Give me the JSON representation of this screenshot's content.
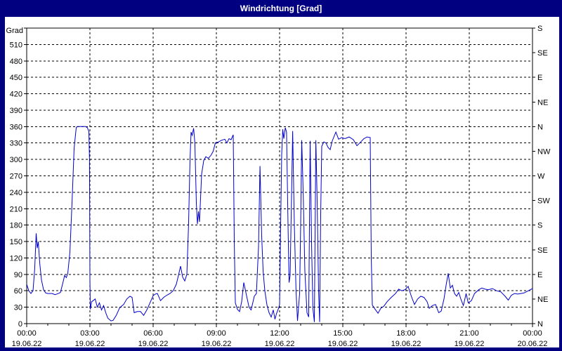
{
  "window": {
    "title": "Windrichtung [Grad]"
  },
  "colors": {
    "frame": "#000080",
    "title_text": "#FFFFFF",
    "background": "#FFFFFF",
    "axis": "#000000",
    "grid": "#000000",
    "line": "#0000CC"
  },
  "chart_data": {
    "type": "line",
    "title": "Windrichtung [Grad]",
    "ylabel": "Grad",
    "grid": "dashed",
    "legend": "none",
    "y_axis": {
      "label": "Grad",
      "min": 0,
      "max": 540,
      "tick_step": 30,
      "labeled_ticks": [
        0,
        30,
        60,
        90,
        120,
        150,
        180,
        210,
        240,
        270,
        300,
        330,
        360,
        390,
        420,
        450,
        480,
        510
      ]
    },
    "right_axis": {
      "tick_step_degrees": 45,
      "labels_bottom_to_top": [
        "N",
        "NE",
        "E",
        "SE",
        "S",
        "SW",
        "W",
        "NW",
        "N",
        "NE",
        "E",
        "SE",
        "S"
      ]
    },
    "x_axis": {
      "range_hours": [
        0,
        24
      ],
      "minor_tick_hours": 1,
      "major_tick_hours": 3,
      "ticks": [
        {
          "time": "00:00",
          "date": "19.06.22"
        },
        {
          "time": "03:00",
          "date": "19.06.22"
        },
        {
          "time": "06:00",
          "date": "19.06.22"
        },
        {
          "time": "09:00",
          "date": "19.06.22"
        },
        {
          "time": "12:00",
          "date": "19.06.22"
        },
        {
          "time": "15:00",
          "date": "19.06.22"
        },
        {
          "time": "18:00",
          "date": "19.06.22"
        },
        {
          "time": "21:00",
          "date": "19.06.22"
        },
        {
          "time": "00:00",
          "date": "20.06.22"
        }
      ]
    },
    "series": [
      {
        "name": "Windrichtung",
        "color": "#0000CC",
        "points": [
          [
            0,
            72
          ],
          [
            0.1,
            60
          ],
          [
            0.2,
            55
          ],
          [
            0.3,
            60
          ],
          [
            0.38,
            100
          ],
          [
            0.45,
            165
          ],
          [
            0.5,
            138
          ],
          [
            0.55,
            150
          ],
          [
            0.62,
            110
          ],
          [
            0.7,
            80
          ],
          [
            0.8,
            62
          ],
          [
            0.9,
            56
          ],
          [
            1.0,
            55
          ],
          [
            1.2,
            55
          ],
          [
            1.35,
            53
          ],
          [
            1.5,
            55
          ],
          [
            1.6,
            57
          ],
          [
            1.72,
            75
          ],
          [
            1.8,
            88
          ],
          [
            1.88,
            84
          ],
          [
            1.95,
            92
          ],
          [
            2.05,
            130
          ],
          [
            2.15,
            220
          ],
          [
            2.25,
            320
          ],
          [
            2.35,
            358
          ],
          [
            2.4,
            360
          ],
          [
            2.6,
            360
          ],
          [
            2.8,
            360
          ],
          [
            2.88,
            358
          ],
          [
            2.95,
            351
          ],
          [
            2.98,
            300
          ],
          [
            3.0,
            80
          ],
          [
            3.02,
            26
          ],
          [
            3.08,
            40
          ],
          [
            3.15,
            42
          ],
          [
            3.25,
            45
          ],
          [
            3.35,
            30
          ],
          [
            3.45,
            38
          ],
          [
            3.55,
            25
          ],
          [
            3.65,
            33
          ],
          [
            3.75,
            20
          ],
          [
            3.85,
            10
          ],
          [
            4.0,
            5
          ],
          [
            4.1,
            6
          ],
          [
            4.25,
            15
          ],
          [
            4.4,
            28
          ],
          [
            4.5,
            32
          ],
          [
            4.6,
            35
          ],
          [
            4.75,
            45
          ],
          [
            4.9,
            50
          ],
          [
            5.0,
            48
          ],
          [
            5.1,
            20
          ],
          [
            5.25,
            22
          ],
          [
            5.4,
            22
          ],
          [
            5.55,
            15
          ],
          [
            5.7,
            25
          ],
          [
            5.85,
            38
          ],
          [
            6.0,
            51
          ],
          [
            6.1,
            54
          ],
          [
            6.2,
            55
          ],
          [
            6.35,
            42
          ],
          [
            6.5,
            48
          ],
          [
            6.65,
            52
          ],
          [
            6.8,
            55
          ],
          [
            6.95,
            60
          ],
          [
            7.1,
            72
          ],
          [
            7.2,
            88
          ],
          [
            7.3,
            105
          ],
          [
            7.4,
            85
          ],
          [
            7.5,
            78
          ],
          [
            7.6,
            90
          ],
          [
            7.68,
            180
          ],
          [
            7.75,
            300
          ],
          [
            7.8,
            350
          ],
          [
            7.85,
            344
          ],
          [
            7.92,
            357
          ],
          [
            7.98,
            330
          ],
          [
            8.05,
            220
          ],
          [
            8.1,
            182
          ],
          [
            8.15,
            205
          ],
          [
            8.2,
            186
          ],
          [
            8.3,
            273
          ],
          [
            8.4,
            298
          ],
          [
            8.5,
            305
          ],
          [
            8.62,
            302
          ],
          [
            8.75,
            308
          ],
          [
            8.85,
            315
          ],
          [
            8.95,
            330
          ],
          [
            9.1,
            332
          ],
          [
            9.25,
            335
          ],
          [
            9.4,
            337
          ],
          [
            9.5,
            330
          ],
          [
            9.6,
            338
          ],
          [
            9.7,
            336
          ],
          [
            9.8,
            345
          ],
          [
            9.85,
            150
          ],
          [
            9.9,
            38
          ],
          [
            10.0,
            26
          ],
          [
            10.1,
            22
          ],
          [
            10.2,
            40
          ],
          [
            10.3,
            75
          ],
          [
            10.45,
            48
          ],
          [
            10.55,
            30
          ],
          [
            10.65,
            25
          ],
          [
            10.8,
            50
          ],
          [
            10.9,
            55
          ],
          [
            11.0,
            140
          ],
          [
            11.07,
            288
          ],
          [
            11.15,
            160
          ],
          [
            11.22,
            95
          ],
          [
            11.3,
            60
          ],
          [
            11.4,
            34
          ],
          [
            11.5,
            20
          ],
          [
            11.6,
            12
          ],
          [
            11.7,
            25
          ],
          [
            11.78,
            8
          ],
          [
            11.85,
            18
          ],
          [
            11.95,
            28
          ],
          [
            12.0,
            35
          ],
          [
            12.05,
            180
          ],
          [
            12.1,
            310
          ],
          [
            12.15,
            355
          ],
          [
            12.2,
            338
          ],
          [
            12.27,
            358
          ],
          [
            12.33,
            350
          ],
          [
            12.4,
            180
          ],
          [
            12.45,
            75
          ],
          [
            12.5,
            88
          ],
          [
            12.57,
            240
          ],
          [
            12.62,
            352
          ],
          [
            12.7,
            180
          ],
          [
            12.78,
            60
          ],
          [
            12.85,
            5
          ],
          [
            12.95,
            55
          ],
          [
            13.0,
            180
          ],
          [
            13.05,
            335
          ],
          [
            13.12,
            240
          ],
          [
            13.2,
            95
          ],
          [
            13.3,
            20
          ],
          [
            13.38,
            12
          ],
          [
            13.45,
            334
          ],
          [
            13.52,
            140
          ],
          [
            13.58,
            28
          ],
          [
            13.65,
            3
          ],
          [
            13.72,
            335
          ],
          [
            13.78,
            230
          ],
          [
            13.85,
            60
          ],
          [
            13.9,
            3
          ],
          [
            13.95,
            200
          ],
          [
            14.0,
            324
          ],
          [
            14.1,
            332
          ],
          [
            14.2,
            330
          ],
          [
            14.3,
            322
          ],
          [
            14.4,
            318
          ],
          [
            14.5,
            334
          ],
          [
            14.67,
            350
          ],
          [
            14.8,
            337
          ],
          [
            14.95,
            340
          ],
          [
            15.1,
            338
          ],
          [
            15.3,
            341
          ],
          [
            15.5,
            336
          ],
          [
            15.67,
            325
          ],
          [
            15.85,
            332
          ],
          [
            16.0,
            338
          ],
          [
            16.15,
            341
          ],
          [
            16.3,
            340
          ],
          [
            16.35,
            120
          ],
          [
            16.4,
            34
          ],
          [
            16.5,
            28
          ],
          [
            16.67,
            19
          ],
          [
            16.8,
            28
          ],
          [
            16.95,
            32
          ],
          [
            17.1,
            40
          ],
          [
            17.3,
            48
          ],
          [
            17.5,
            55
          ],
          [
            17.65,
            63
          ],
          [
            17.8,
            60
          ],
          [
            17.95,
            62
          ],
          [
            18.1,
            68
          ],
          [
            18.25,
            50
          ],
          [
            18.4,
            35
          ],
          [
            18.55,
            45
          ],
          [
            18.7,
            50
          ],
          [
            18.85,
            48
          ],
          [
            19.0,
            40
          ],
          [
            19.1,
            28
          ],
          [
            19.25,
            33
          ],
          [
            19.4,
            35
          ],
          [
            19.55,
            20
          ],
          [
            19.67,
            23
          ],
          [
            19.8,
            45
          ],
          [
            19.9,
            70
          ],
          [
            20.0,
            92
          ],
          [
            20.1,
            65
          ],
          [
            20.2,
            70
          ],
          [
            20.3,
            55
          ],
          [
            20.4,
            50
          ],
          [
            20.5,
            57
          ],
          [
            20.6,
            45
          ],
          [
            20.72,
            33
          ],
          [
            20.85,
            55
          ],
          [
            20.95,
            38
          ],
          [
            21.1,
            42
          ],
          [
            21.25,
            55
          ],
          [
            21.45,
            62
          ],
          [
            21.6,
            65
          ],
          [
            21.75,
            63
          ],
          [
            21.9,
            62
          ],
          [
            22.1,
            64
          ],
          [
            22.3,
            60
          ],
          [
            22.5,
            58
          ],
          [
            22.7,
            50
          ],
          [
            22.85,
            43
          ],
          [
            23.0,
            52
          ],
          [
            23.15,
            55
          ],
          [
            23.3,
            54
          ],
          [
            23.45,
            55
          ],
          [
            23.6,
            56
          ],
          [
            23.8,
            60
          ],
          [
            24.0,
            64
          ]
        ]
      }
    ]
  }
}
